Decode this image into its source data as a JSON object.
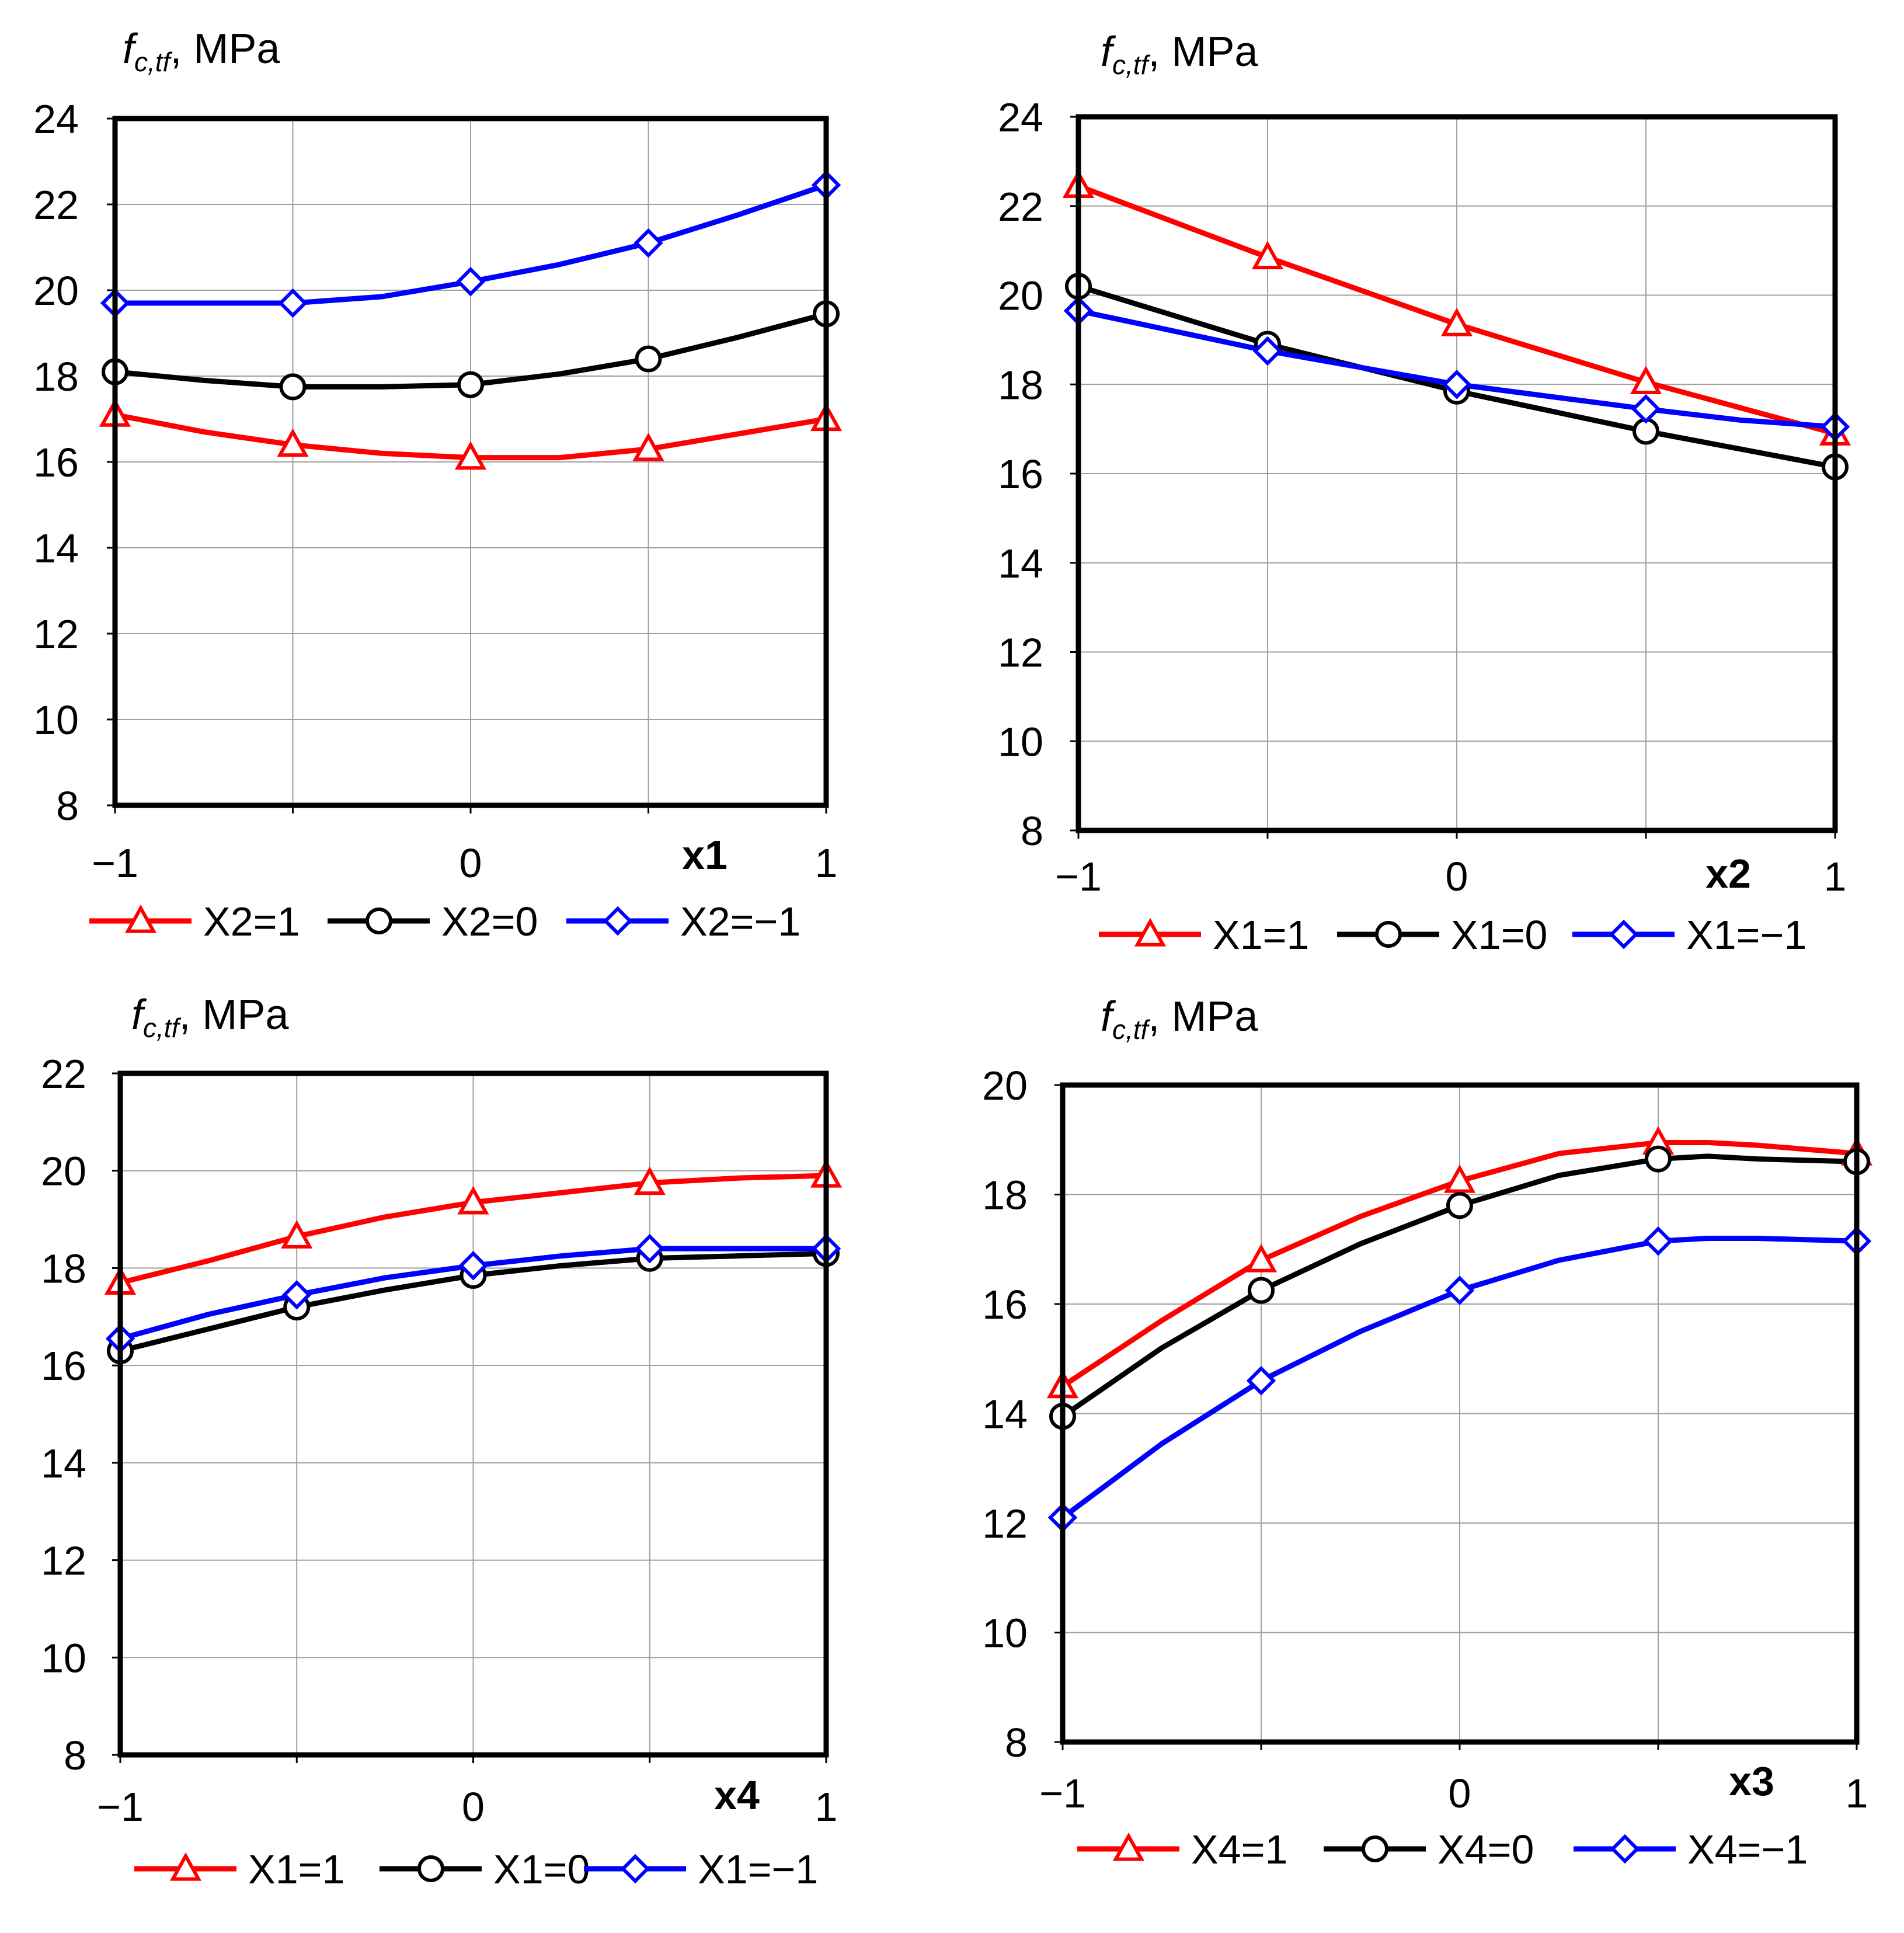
{
  "chart_data": [
    {
      "type": "line",
      "ylabel": {
        "symbol": "f",
        "subscript": "c,tf",
        "suffix": ", MPa"
      },
      "xlabel": "x1",
      "xlim": [
        -1,
        1
      ],
      "ylim": [
        8,
        24
      ],
      "yticks": [
        "8",
        "10",
        "12",
        "14",
        "16",
        "18",
        "20",
        "22",
        "24"
      ],
      "xticks": [
        "−1",
        "0",
        "1"
      ],
      "series": [
        {
          "name": "X2=1",
          "color": "#ff0000",
          "marker": "triangle",
          "x": [
            -1,
            -0.5,
            0,
            0.5,
            1
          ],
          "y": [
            17.1,
            16.4,
            16.1,
            16.3,
            17.0
          ],
          "line_x": [
            -1,
            -0.75,
            -0.5,
            -0.25,
            0,
            0.25,
            0.5,
            0.75,
            1
          ],
          "line_y": [
            17.1,
            16.7,
            16.4,
            16.2,
            16.1,
            16.1,
            16.3,
            16.65,
            17.0
          ]
        },
        {
          "name": "X2=0",
          "color": "#000000",
          "marker": "circle",
          "x": [
            -1,
            -0.5,
            0,
            0.5,
            1
          ],
          "y": [
            18.1,
            17.75,
            17.8,
            18.4,
            19.45
          ],
          "line_x": [
            -1,
            -0.75,
            -0.5,
            -0.25,
            0,
            0.25,
            0.5,
            0.75,
            1
          ],
          "line_y": [
            18.1,
            17.9,
            17.75,
            17.75,
            17.8,
            18.05,
            18.4,
            18.9,
            19.45
          ]
        },
        {
          "name": "X2=−1",
          "color": "#0000ff",
          "marker": "diamond",
          "x": [
            -1,
            -0.5,
            0,
            0.5,
            1
          ],
          "y": [
            19.7,
            19.7,
            20.2,
            21.1,
            22.45
          ],
          "line_x": [
            -1,
            -0.75,
            -0.5,
            -0.25,
            0,
            0.25,
            0.5,
            0.75,
            1
          ],
          "line_y": [
            19.7,
            19.7,
            19.7,
            19.85,
            20.2,
            20.6,
            21.1,
            21.75,
            22.45
          ]
        }
      ]
    },
    {
      "type": "line",
      "ylabel": {
        "symbol": "f",
        "subscript": "c,tf",
        "suffix": ", MPa"
      },
      "xlabel": "x2",
      "xlim": [
        -1,
        1
      ],
      "ylim": [
        8,
        24
      ],
      "yticks": [
        "8",
        "10",
        "12",
        "14",
        "16",
        "18",
        "20",
        "22",
        "24"
      ],
      "xticks": [
        "−1",
        "0",
        "1"
      ],
      "series": [
        {
          "name": "X1=1",
          "color": "#ff0000",
          "marker": "triangle",
          "x": [
            -1,
            -0.5,
            0,
            0.5,
            1
          ],
          "y": [
            22.45,
            20.85,
            19.35,
            18.05,
            16.9
          ],
          "line_x": [
            -1,
            -0.5,
            -0.25,
            0,
            0.5,
            1
          ],
          "line_y": [
            22.45,
            20.85,
            20.1,
            19.35,
            18.05,
            16.9
          ]
        },
        {
          "name": "X1=0",
          "color": "#000000",
          "marker": "circle",
          "x": [
            -1,
            -0.5,
            0,
            0.5,
            1
          ],
          "y": [
            20.2,
            18.9,
            17.85,
            16.95,
            16.15
          ],
          "line_x": [
            -1,
            -0.5,
            0,
            0.5,
            1
          ],
          "line_y": [
            20.2,
            18.9,
            17.85,
            16.95,
            16.15
          ]
        },
        {
          "name": "X1=−1",
          "color": "#0000ff",
          "marker": "diamond",
          "x": [
            -1,
            -0.5,
            0,
            0.5,
            1
          ],
          "y": [
            19.65,
            18.75,
            18.0,
            17.45,
            17.05
          ],
          "line_x": [
            -1,
            -0.5,
            0,
            0.5,
            0.75,
            1
          ],
          "line_y": [
            19.65,
            18.75,
            18.0,
            17.45,
            17.2,
            17.05
          ]
        }
      ]
    },
    {
      "type": "line",
      "ylabel": {
        "symbol": "f",
        "subscript": "c,tf",
        "suffix": ", MPa"
      },
      "xlabel": "x4",
      "xlim": [
        -1,
        1
      ],
      "ylim": [
        8,
        22
      ],
      "yticks": [
        "8",
        "10",
        "12",
        "14",
        "16",
        "18",
        "20",
        "22"
      ],
      "xticks": [
        "−1",
        "0",
        "1"
      ],
      "series": [
        {
          "name": "X1=1",
          "color": "#ff0000",
          "marker": "triangle",
          "x": [
            -1,
            -0.5,
            0,
            0.5,
            1
          ],
          "y": [
            17.7,
            18.65,
            19.35,
            19.75,
            19.9
          ],
          "line_x": [
            -1,
            -0.75,
            -0.5,
            -0.25,
            0,
            0.25,
            0.5,
            0.75,
            1
          ],
          "line_y": [
            17.7,
            18.15,
            18.65,
            19.05,
            19.35,
            19.55,
            19.75,
            19.85,
            19.9
          ]
        },
        {
          "name": "X1=0",
          "color": "#000000",
          "marker": "circle",
          "x": [
            -1,
            -0.5,
            0,
            0.5,
            1
          ],
          "y": [
            16.3,
            17.2,
            17.85,
            18.2,
            18.3
          ],
          "line_x": [
            -1,
            -0.75,
            -0.5,
            -0.25,
            0,
            0.25,
            0.5,
            0.75,
            1
          ],
          "line_y": [
            16.3,
            16.75,
            17.2,
            17.55,
            17.85,
            18.05,
            18.2,
            18.25,
            18.3
          ]
        },
        {
          "name": "X1=−1",
          "color": "#0000ff",
          "marker": "diamond",
          "x": [
            -1,
            -0.5,
            0,
            0.5,
            1
          ],
          "y": [
            16.55,
            17.45,
            18.05,
            18.4,
            18.4
          ],
          "line_x": [
            -1,
            -0.75,
            -0.5,
            -0.25,
            0,
            0.25,
            0.5,
            0.75,
            1
          ],
          "line_y": [
            16.55,
            17.05,
            17.45,
            17.8,
            18.05,
            18.25,
            18.4,
            18.4,
            18.4
          ]
        }
      ]
    },
    {
      "type": "line",
      "ylabel": {
        "symbol": "f",
        "subscript": "c,tf",
        "suffix": ", MPa"
      },
      "xlabel": "x3",
      "xlim": [
        -1,
        1
      ],
      "ylim": [
        8,
        20
      ],
      "yticks": [
        "8",
        "10",
        "12",
        "14",
        "16",
        "18",
        "20"
      ],
      "xticks": [
        "−1",
        "0",
        "1"
      ],
      "series": [
        {
          "name": "X4=1",
          "color": "#ff0000",
          "marker": "triangle",
          "x": [
            -1,
            -0.5,
            0,
            0.5,
            1
          ],
          "y": [
            14.5,
            16.8,
            18.25,
            18.95,
            18.75
          ],
          "line_x": [
            -1,
            -0.75,
            -0.5,
            -0.25,
            0,
            0.25,
            0.5,
            0.625,
            0.75,
            1
          ],
          "line_y": [
            14.5,
            15.7,
            16.8,
            17.6,
            18.25,
            18.75,
            18.95,
            18.95,
            18.9,
            18.75
          ]
        },
        {
          "name": "X4=0",
          "color": "#000000",
          "marker": "circle",
          "x": [
            -1,
            -0.5,
            0,
            0.5,
            1
          ],
          "y": [
            13.95,
            16.25,
            17.8,
            18.65,
            18.6
          ],
          "line_x": [
            -1,
            -0.75,
            -0.5,
            -0.25,
            0,
            0.25,
            0.5,
            0.625,
            0.75,
            1
          ],
          "line_y": [
            13.95,
            15.2,
            16.25,
            17.1,
            17.8,
            18.35,
            18.65,
            18.7,
            18.65,
            18.6
          ]
        },
        {
          "name": "X4=−1",
          "color": "#0000ff",
          "marker": "diamond",
          "x": [
            -1,
            -0.5,
            0,
            0.5,
            1
          ],
          "y": [
            12.1,
            14.6,
            16.25,
            17.15,
            17.15
          ],
          "line_x": [
            -1,
            -0.75,
            -0.5,
            -0.25,
            0,
            0.25,
            0.5,
            0.625,
            0.75,
            1
          ],
          "line_y": [
            12.1,
            13.45,
            14.6,
            15.5,
            16.25,
            16.8,
            17.15,
            17.2,
            17.2,
            17.15
          ]
        }
      ]
    }
  ]
}
